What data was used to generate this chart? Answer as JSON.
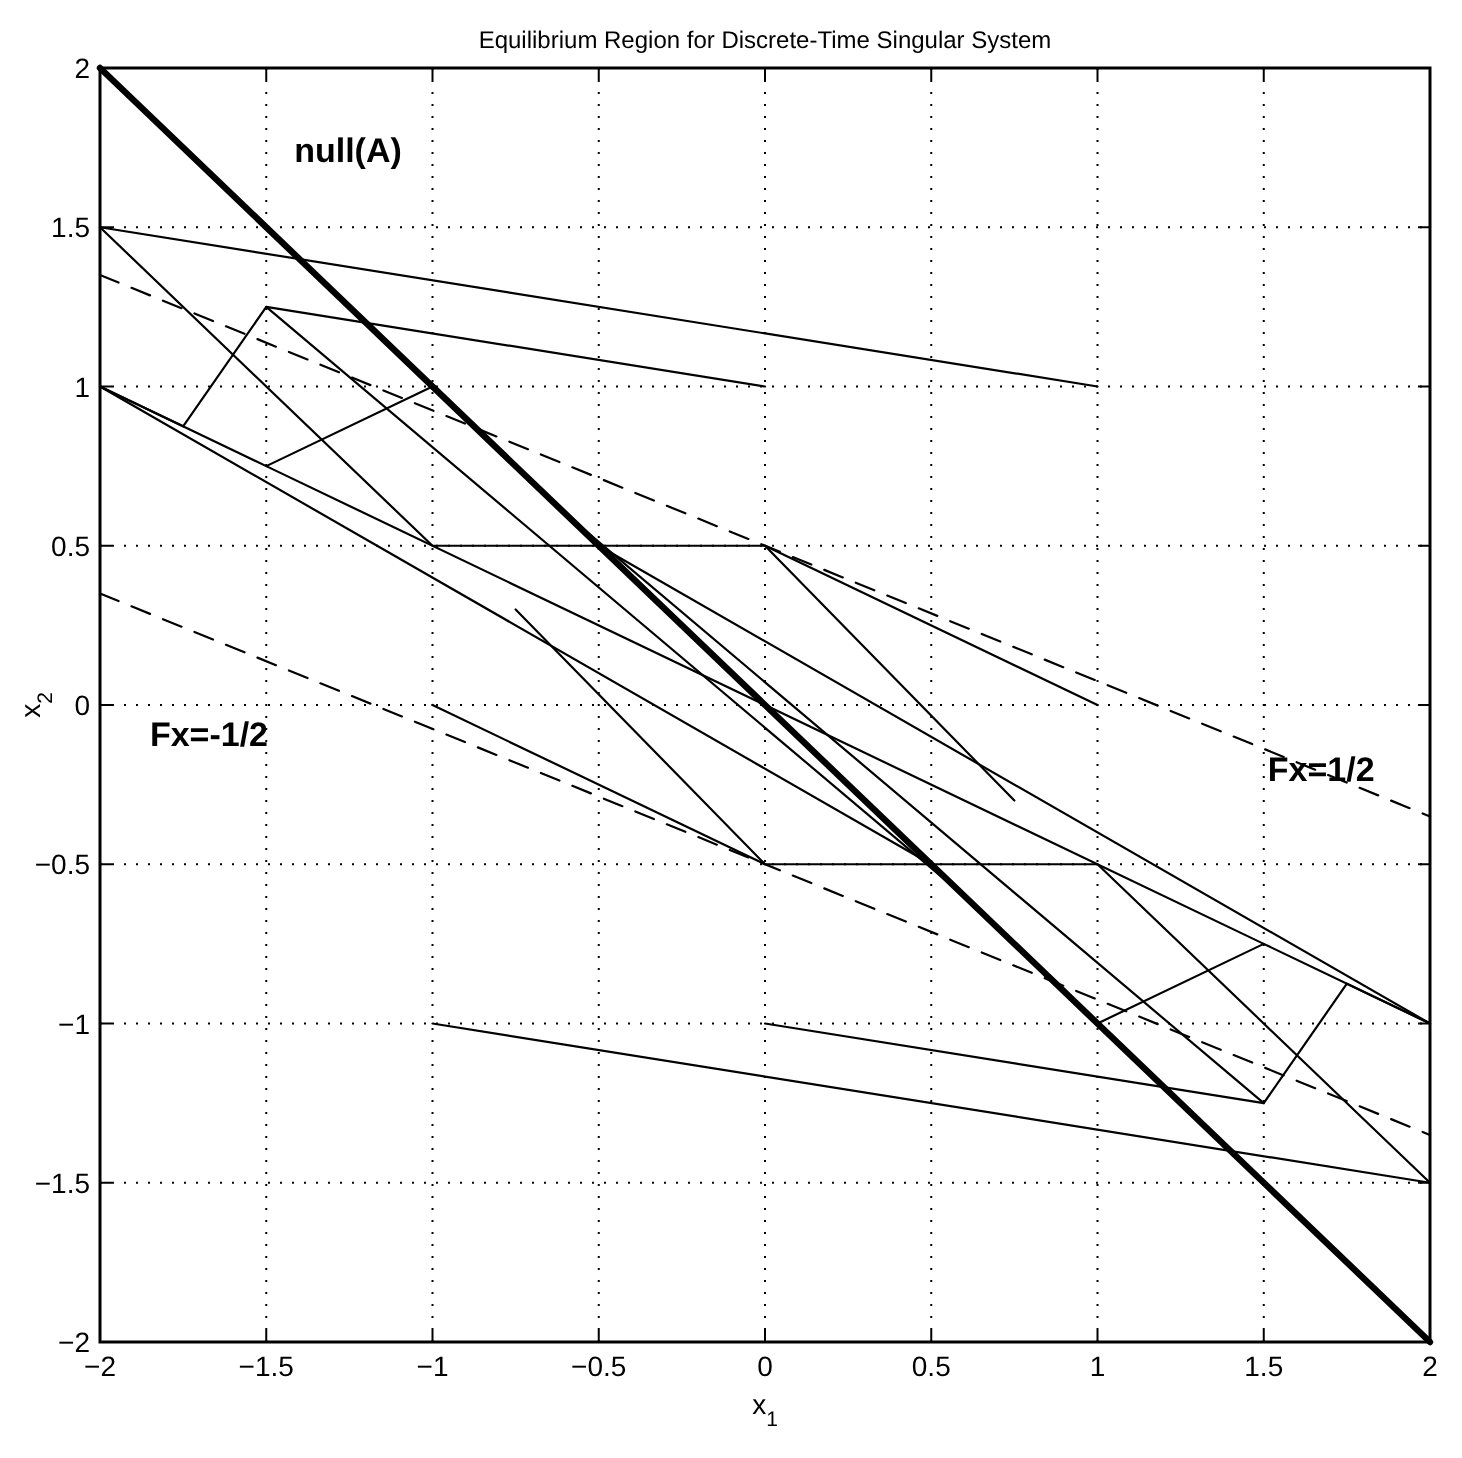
{
  "chart_data": {
    "type": "line",
    "title": "Equilibrium Region for Discrete-Time Singular System",
    "xlabel": "x$_{1}$",
    "ylabel": "x$_{2}$",
    "xlim": [
      -2,
      2
    ],
    "ylim": [
      -2,
      2
    ],
    "xticks": [
      -2,
      -1.5,
      -1,
      -0.5,
      0,
      0.5,
      1,
      1.5,
      2
    ],
    "yticks": [
      -2,
      -1.5,
      -1,
      -0.5,
      0,
      0.5,
      1,
      1.5,
      2
    ],
    "grid": true,
    "line_style": "solid",
    "series": [
      {
        "name": "null(A)",
        "color": "#000000",
        "x": [
          -2,
          2
        ],
        "values": [
          2,
          -2
        ]
      },
      {
        "name": "Fx=1/2",
        "color": "#000000",
        "line_style": "dashed",
        "x": [
          -2,
          2
        ],
        "values": [
          1.35,
          -0.35
        ]
      },
      {
        "name": "Fx=-1/2",
        "color": "#000000",
        "line_style": "dashed",
        "x": [
          -2,
          2
        ],
        "values": [
          0.35,
          -1.35
        ]
      },
      {
        "color": "#000000",
        "x": [
          -2,
          1
        ],
        "values": [
          1.5,
          1
        ]
      },
      {
        "color": "#000000",
        "x": [
          2,
          -1
        ],
        "values": [
          -1.5,
          -1
        ]
      },
      {
        "color": "#000000",
        "x": [
          -1.5,
          0
        ],
        "values": [
          1.25,
          1
        ]
      },
      {
        "color": "#000000",
        "x": [
          1.5,
          0
        ],
        "values": [
          -1.25,
          -1
        ]
      },
      {
        "color": "#000000",
        "x": [
          -2,
          -1,
          0,
          1
        ],
        "values": [
          1.5,
          0.5,
          0.5,
          0
        ]
      },
      {
        "color": "#000000",
        "x": [
          2,
          1,
          0,
          -1
        ],
        "values": [
          -1.5,
          -0.5,
          -0.5,
          0
        ]
      },
      {
        "color": "#000000",
        "x": [
          0,
          0.75
        ],
        "values": [
          0.5,
          -0.3
        ]
      },
      {
        "color": "#000000",
        "x": [
          0,
          -0.75
        ],
        "values": [
          -0.5,
          0.3
        ]
      },
      {
        "color": "#000000",
        "x": [
          -2,
          -1.75,
          -1.5,
          0.6
        ],
        "values": [
          1,
          0.875,
          1.25,
          -0.6
        ]
      },
      {
        "color": "#000000",
        "x": [
          2,
          1.75,
          1.5,
          -0.6
        ],
        "values": [
          -1,
          -0.875,
          -1.25,
          0.6
        ]
      },
      {
        "color": "#000000",
        "x": [
          -2,
          -1.5,
          -1
        ],
        "values": [
          1,
          0.75,
          1
        ]
      },
      {
        "color": "#000000",
        "x": [
          2,
          1.5,
          1
        ],
        "values": [
          -1,
          -0.75,
          -1
        ]
      },
      {
        "color": "#000000",
        "x": [
          -1.5,
          1.5
        ],
        "values": [
          0.75,
          -0.75
        ]
      },
      {
        "color": "#000000",
        "x": [
          -2,
          0.5
        ],
        "values": [
          1,
          -0.5
        ]
      },
      {
        "color": "#000000",
        "x": [
          2,
          -0.5
        ],
        "values": [
          -1,
          0.5
        ]
      }
    ]
  }
}
